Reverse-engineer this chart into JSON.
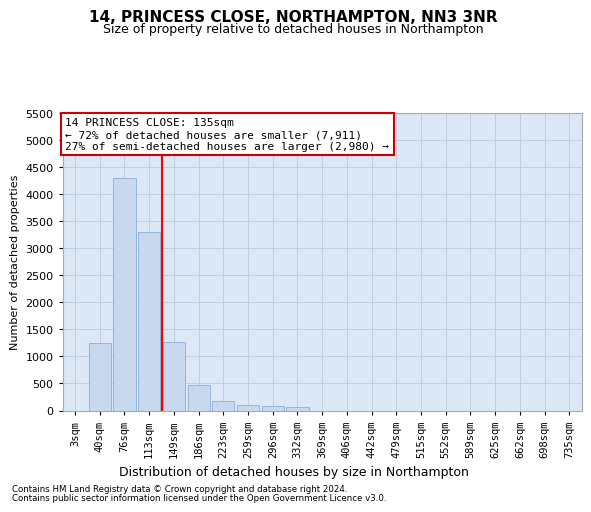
{
  "title": "14, PRINCESS CLOSE, NORTHAMPTON, NN3 3NR",
  "subtitle": "Size of property relative to detached houses in Northampton",
  "xlabel": "Distribution of detached houses by size in Northampton",
  "ylabel": "Number of detached properties",
  "footer1": "Contains HM Land Registry data © Crown copyright and database right 2024.",
  "footer2": "Contains public sector information licensed under the Open Government Licence v3.0.",
  "categories": [
    "3sqm",
    "40sqm",
    "76sqm",
    "113sqm",
    "149sqm",
    "186sqm",
    "223sqm",
    "259sqm",
    "296sqm",
    "332sqm",
    "369sqm",
    "406sqm",
    "442sqm",
    "479sqm",
    "515sqm",
    "552sqm",
    "589sqm",
    "625sqm",
    "662sqm",
    "698sqm",
    "735sqm"
  ],
  "values": [
    0,
    1250,
    4300,
    3300,
    1275,
    475,
    175,
    100,
    75,
    60,
    0,
    0,
    0,
    0,
    0,
    0,
    0,
    0,
    0,
    0,
    0
  ],
  "bar_color": "#c8d9ef",
  "bar_edge_color": "#8ab0d5",
  "ylim": [
    0,
    5500
  ],
  "yticks": [
    0,
    500,
    1000,
    1500,
    2000,
    2500,
    3000,
    3500,
    4000,
    4500,
    5000,
    5500
  ],
  "red_line_index": 3,
  "annotation_line1": "14 PRINCESS CLOSE: 135sqm",
  "annotation_line2": "← 72% of detached houses are smaller (7,911)",
  "annotation_line3": "27% of semi-detached houses are larger (2,980) →",
  "annotation_box_facecolor": "#ffffff",
  "annotation_box_edgecolor": "#cc0000",
  "bg_color": "#dce8f5",
  "grid_color": "#c0cfe0",
  "title_fontsize": 11,
  "subtitle_fontsize": 9
}
